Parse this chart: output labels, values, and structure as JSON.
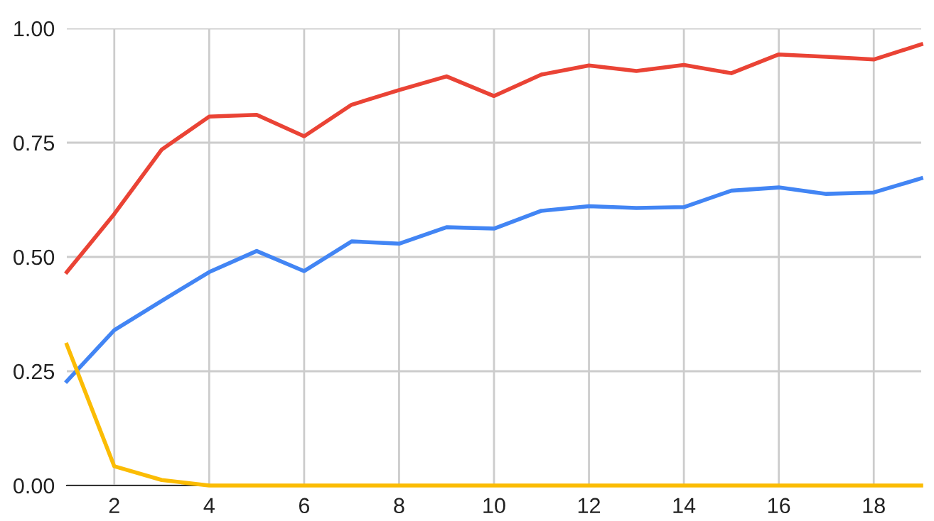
{
  "chart_data": {
    "type": "line",
    "x": [
      1,
      2,
      3,
      4,
      5,
      6,
      7,
      8,
      9,
      10,
      11,
      12,
      13,
      14,
      15,
      16,
      17,
      18,
      19
    ],
    "series": [
      {
        "color": "#ea4335",
        "values": [
          0.467,
          0.594,
          0.735,
          0.807,
          0.811,
          0.764,
          0.833,
          0.865,
          0.895,
          0.852,
          0.899,
          0.919,
          0.907,
          0.92,
          0.902,
          0.943,
          0.938,
          0.932,
          0.965
        ]
      },
      {
        "color": "#4285f4",
        "values": [
          0.228,
          0.34,
          0.404,
          0.467,
          0.513,
          0.469,
          0.534,
          0.529,
          0.565,
          0.562,
          0.601,
          0.611,
          0.607,
          0.609,
          0.645,
          0.652,
          0.638,
          0.641,
          0.672
        ]
      },
      {
        "color": "#fbbc04",
        "values": [
          0.308,
          0.042,
          0.012,
          0,
          0,
          0,
          0,
          0,
          0,
          0,
          0,
          0,
          0,
          0,
          0,
          0,
          0,
          0,
          0
        ]
      }
    ],
    "xlim": [
      1,
      19
    ],
    "xticks": [
      2,
      4,
      6,
      8,
      10,
      12,
      14,
      16,
      18
    ],
    "ylim": [
      0,
      1
    ],
    "yticks": [
      {
        "value": 0,
        "label": "0.00"
      },
      {
        "value": 0.25,
        "label": "0.25"
      },
      {
        "value": 0.5,
        "label": "0.50"
      },
      {
        "value": 0.75,
        "label": "0.75"
      },
      {
        "value": 1,
        "label": "1.00"
      }
    ],
    "grid": true,
    "legend": false,
    "marker": "none",
    "line_style": "solid"
  }
}
